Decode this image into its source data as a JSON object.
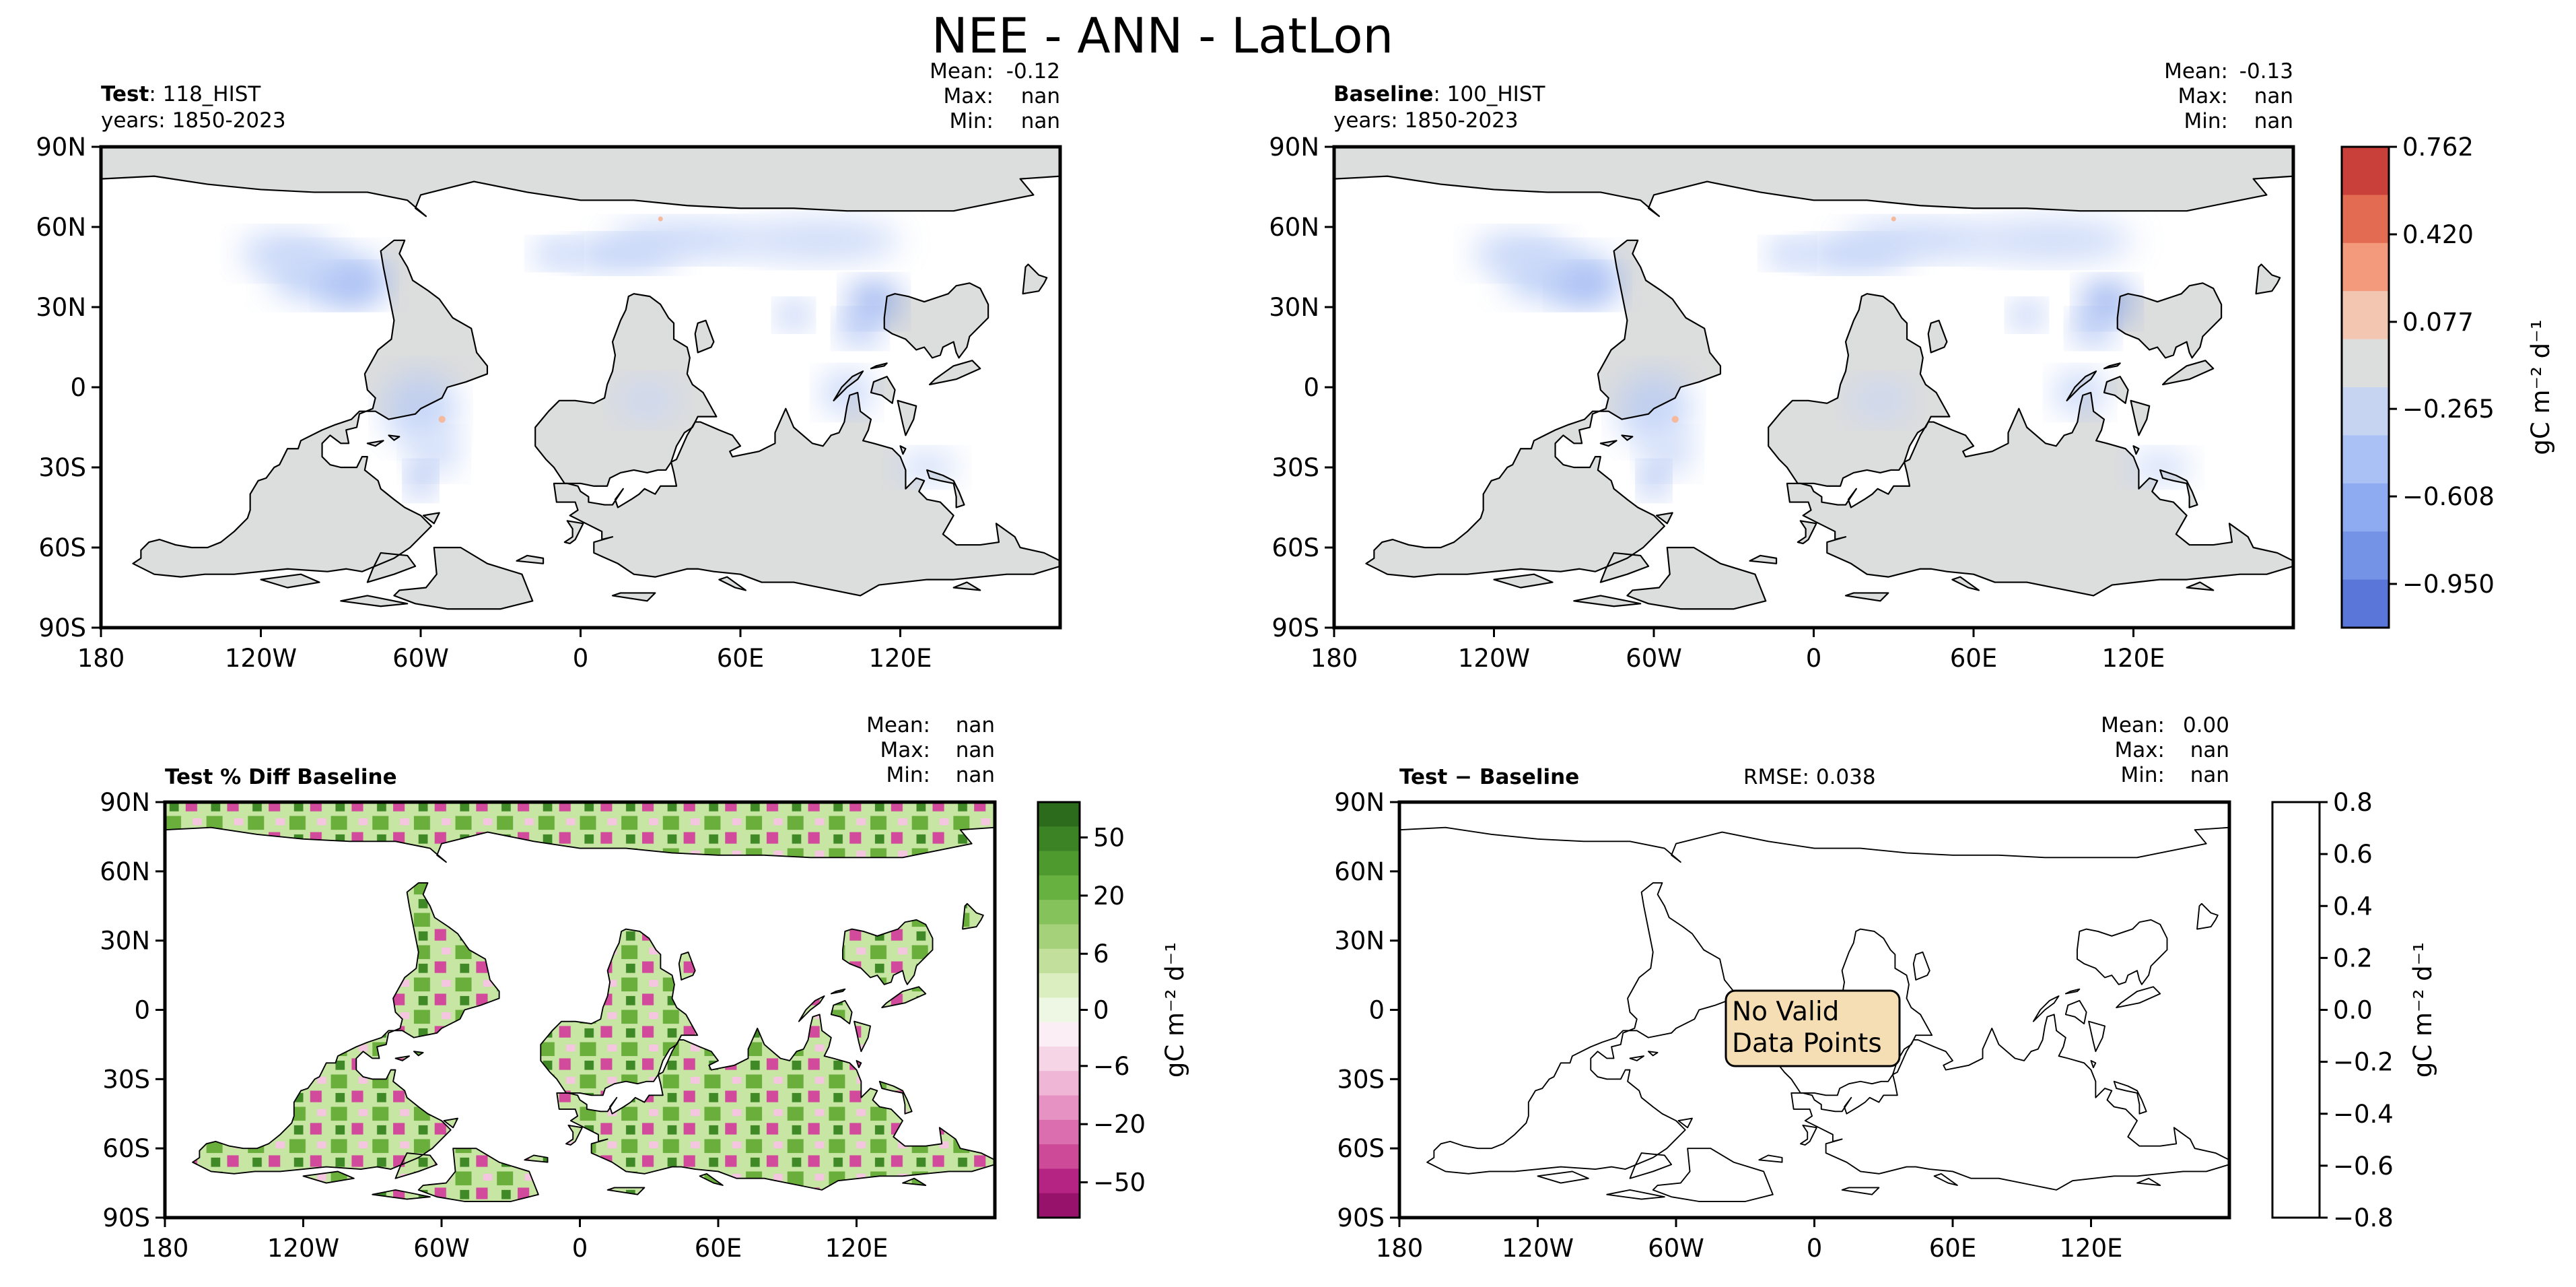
{
  "figure": {
    "title": "NEE - ANN - LatLon"
  },
  "axes": {
    "lat_ticks": [
      "90N",
      "60N",
      "30N",
      "0",
      "30S",
      "60S",
      "90S"
    ],
    "lon_ticks": [
      "180",
      "120W",
      "60W",
      "0",
      "60E",
      "120E"
    ]
  },
  "stat_labels": {
    "mean": "Mean:",
    "max": "Max:",
    "min": "Min:"
  },
  "panels": {
    "test": {
      "title_bold": "Test",
      "title_rest": ": 118_HIST",
      "years": "years: 1850-2023",
      "mean": "-0.12",
      "max": "nan",
      "min": "nan"
    },
    "baseline": {
      "title_bold": "Baseline",
      "title_rest": ": 100_HIST",
      "years": "years: 1850-2023",
      "mean": "-0.13",
      "max": "nan",
      "min": "nan"
    },
    "pctdiff": {
      "title": "Test % Diff Baseline",
      "mean": "nan",
      "max": "nan",
      "min": "nan"
    },
    "diff": {
      "title": "Test − Baseline",
      "rmse": "RMSE: 0.038",
      "mean": "0.00",
      "max": "nan",
      "min": "nan",
      "message_line1": "No Valid",
      "message_line2": "Data Points"
    }
  },
  "colorbars": {
    "main": {
      "units": "gC m⁻² d⁻¹",
      "ticks": [
        "0.762",
        "0.420",
        "0.077",
        "−0.265",
        "−0.608",
        "−0.950"
      ]
    },
    "pct": {
      "units": "gC m⁻² d⁻¹",
      "ticks": [
        "50",
        "20",
        "6",
        "0",
        "−6",
        "−20",
        "−50"
      ]
    },
    "diff": {
      "units": "gC m⁻² d⁻¹",
      "ticks": [
        "0.8",
        "0.6",
        "0.4",
        "0.2",
        "0.0",
        "−0.2",
        "−0.4",
        "−0.6",
        "−0.8"
      ]
    }
  },
  "chart_data": [
    {
      "type": "heatmap",
      "name": "test",
      "title": "Test : 118_HIST",
      "subtitle": "years: 1850-2023",
      "projection": "PlateCarree",
      "xlim": [
        -180,
        180
      ],
      "ylim": [
        -90,
        90
      ],
      "stats": {
        "mean": -0.12,
        "max": "nan",
        "min": "nan"
      },
      "colorbar": {
        "ticks": [
          0.762,
          0.42,
          0.077,
          -0.265,
          -0.608,
          -0.95
        ],
        "range": [
          -1.064,
          0.876
        ],
        "cmap": "coolwarm"
      }
    },
    {
      "type": "heatmap",
      "name": "baseline",
      "title": "Baseline : 100_HIST",
      "subtitle": "years: 1850-2023",
      "projection": "PlateCarree",
      "xlim": [
        -180,
        180
      ],
      "ylim": [
        -90,
        90
      ],
      "stats": {
        "mean": -0.13,
        "max": "nan",
        "min": "nan"
      }
    },
    {
      "type": "heatmap",
      "name": "pct_diff",
      "title": "Test % Diff Baseline",
      "projection": "PlateCarree",
      "xlim": [
        -180,
        180
      ],
      "ylim": [
        -90,
        90
      ],
      "stats": {
        "mean": "nan",
        "max": "nan",
        "min": "nan"
      },
      "colorbar": {
        "ticks": [
          50,
          20,
          6,
          0,
          -6,
          -20,
          -50
        ],
        "cmap": "PiYG"
      }
    },
    {
      "type": "heatmap",
      "name": "diff",
      "title": "Test − Baseline",
      "rmse": 0.038,
      "projection": "PlateCarree",
      "xlim": [
        -180,
        180
      ],
      "ylim": [
        -90,
        90
      ],
      "stats": {
        "mean": 0.0,
        "max": "nan",
        "min": "nan"
      },
      "annotation": "No Valid Data Points",
      "colorbar": {
        "ticks": [
          0.8,
          0.6,
          0.4,
          0.2,
          0.0,
          -0.2,
          -0.4,
          -0.6,
          -0.8
        ],
        "range": [
          -0.8,
          0.8
        ]
      }
    }
  ]
}
